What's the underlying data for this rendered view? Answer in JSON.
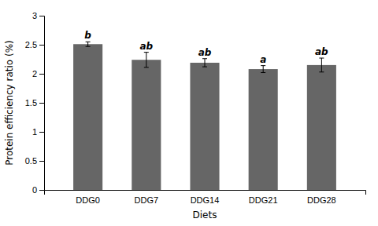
{
  "chart_data": {
    "type": "bar",
    "xlabel": "Diets",
    "ylabel": "Protein efficiency ratio (%)",
    "categories": [
      "DDG0",
      "DDG7",
      "DDG14",
      "DDG21",
      "DDG28"
    ],
    "values": [
      2.51,
      2.24,
      2.19,
      2.08,
      2.15
    ],
    "errors": [
      0.04,
      0.13,
      0.07,
      0.06,
      0.12
    ],
    "annotations": [
      "b",
      "ab",
      "ab",
      "a",
      "ab"
    ],
    "color": "#666666",
    "ylim": [
      0,
      3
    ],
    "yticks": [
      0,
      0.5,
      1,
      1.5,
      2,
      2.5,
      3
    ],
    "grid": false
  }
}
